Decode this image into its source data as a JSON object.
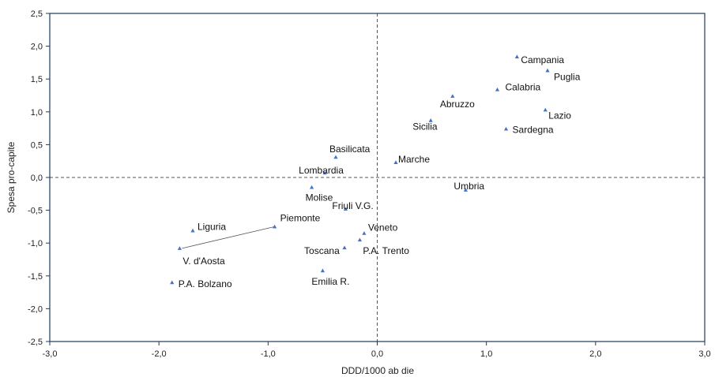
{
  "chart_data": {
    "type": "scatter",
    "title": "",
    "xlabel": "DDD/1000 ab die",
    "ylabel": "Spesa pro-capite",
    "xlim": [
      -3.0,
      3.0
    ],
    "ylim": [
      -2.5,
      2.5
    ],
    "x_ticks": [
      "-3,0",
      "-2,0",
      "-1,0",
      "0,0",
      "1,0",
      "2,0",
      "3,0"
    ],
    "y_ticks": [
      "2,5",
      "2,0",
      "1,5",
      "1,0",
      "0,5",
      "0,0",
      "-0,5",
      "-1,0",
      "-1,5",
      "-2,0",
      "-2,5"
    ],
    "grid": false,
    "reference_lines": {
      "x": 0,
      "y": 0,
      "style": "dashed"
    },
    "marker_color": "#4472C4",
    "points": [
      {
        "label": "Campania",
        "x": 1.28,
        "y": 1.84
      },
      {
        "label": "Puglia",
        "x": 1.56,
        "y": 1.63
      },
      {
        "label": "Calabria",
        "x": 1.1,
        "y": 1.34
      },
      {
        "label": "Abruzzo",
        "x": 0.69,
        "y": 1.24
      },
      {
        "label": "Lazio",
        "x": 1.54,
        "y": 1.03
      },
      {
        "label": "Sicilia",
        "x": 0.49,
        "y": 0.87
      },
      {
        "label": "Sardegna",
        "x": 1.18,
        "y": 0.74
      },
      {
        "label": "Basilicata",
        "x": -0.38,
        "y": 0.31
      },
      {
        "label": "Marche",
        "x": 0.17,
        "y": 0.23
      },
      {
        "label": "Lombardia",
        "x": -0.48,
        "y": 0.07
      },
      {
        "label": "Umbria",
        "x": 0.81,
        "y": -0.19
      },
      {
        "label": "Molise",
        "x": -0.6,
        "y": -0.15
      },
      {
        "label": "Friuli V.G.",
        "x": -0.29,
        "y": -0.48
      },
      {
        "label": "Piemonte",
        "x": -0.94,
        "y": -0.75
      },
      {
        "label": "Liguria",
        "x": -1.69,
        "y": -0.81
      },
      {
        "label": "V. d'Aosta",
        "x": -1.81,
        "y": -1.08
      },
      {
        "label": "Veneto",
        "x": -0.12,
        "y": -0.85
      },
      {
        "label": "P.A. Trento",
        "x": -0.16,
        "y": -0.95
      },
      {
        "label": "Toscana",
        "x": -0.3,
        "y": -1.07
      },
      {
        "label": "Emilia R.",
        "x": -0.5,
        "y": -1.42
      },
      {
        "label": "P.A. Bolzano",
        "x": -1.88,
        "y": -1.6
      }
    ]
  }
}
